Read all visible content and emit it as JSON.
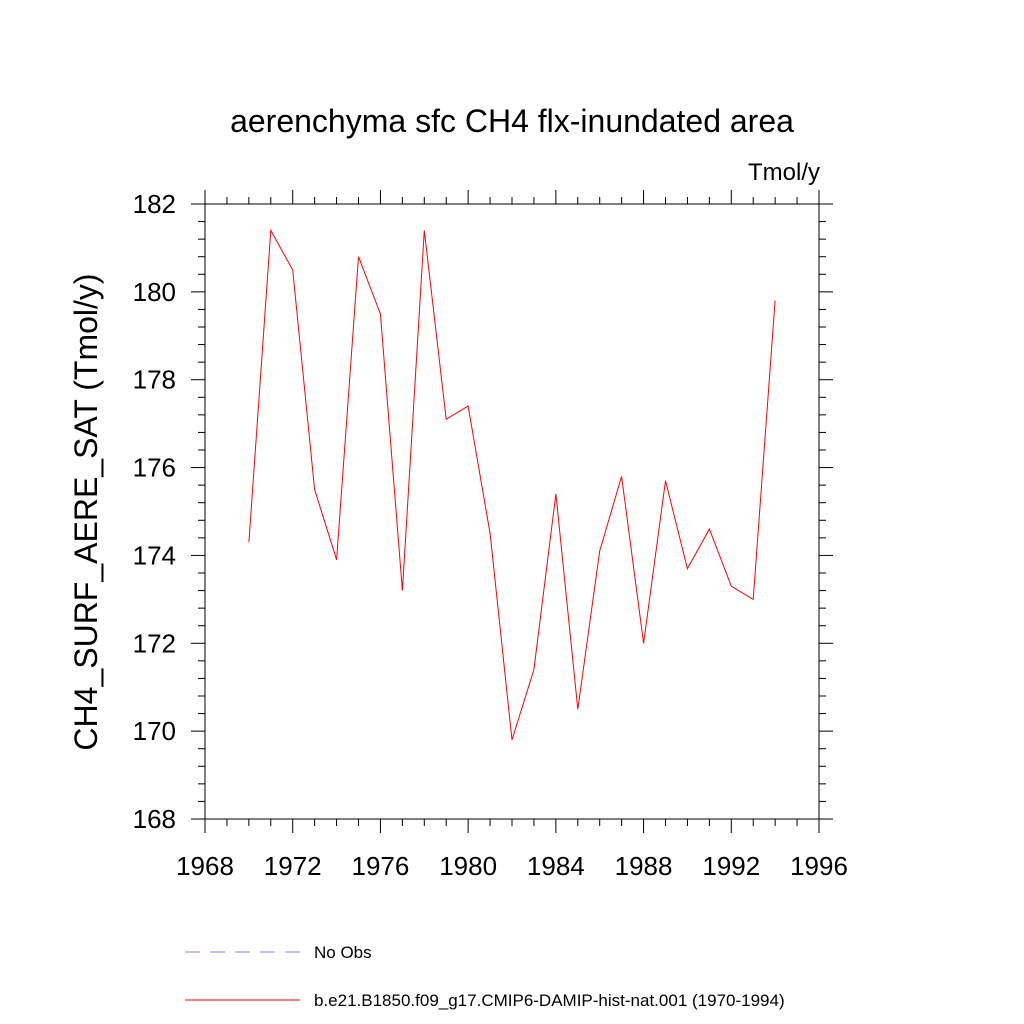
{
  "chart_data": {
    "type": "line",
    "title": "aerenchyma sfc CH4 flx-inundated area",
    "units_label": "Tmol/y",
    "ylabel": "CH4_SURF_AERE_SAT  (Tmol/y)",
    "xlabel": "",
    "xlim": [
      1968,
      1996
    ],
    "ylim": [
      168,
      182
    ],
    "x_ticks": [
      1968,
      1972,
      1976,
      1980,
      1984,
      1988,
      1992,
      1996
    ],
    "y_ticks": [
      168,
      170,
      172,
      174,
      176,
      178,
      180,
      182
    ],
    "x_tick_labels": [
      "1968",
      "1972",
      "1976",
      "1980",
      "1984",
      "1988",
      "1992",
      "1996"
    ],
    "y_tick_labels": [
      "168",
      "170",
      "172",
      "174",
      "176",
      "178",
      "180",
      "182"
    ],
    "grid": false,
    "legend_position": "bottom",
    "series": [
      {
        "name": "b.e21.B1850.f09_g17.CMIP6-DAMIP-hist-nat.001 (1970-1994)",
        "color": "#ff0000",
        "style": "solid",
        "x": [
          1970,
          1971,
          1972,
          1973,
          1974,
          1975,
          1976,
          1977,
          1978,
          1979,
          1980,
          1981,
          1982,
          1983,
          1984,
          1985,
          1986,
          1987,
          1988,
          1989,
          1990,
          1991,
          1992,
          1993,
          1994
        ],
        "values": [
          174.3,
          181.4,
          180.5,
          175.5,
          173.9,
          180.8,
          179.5,
          173.2,
          181.4,
          177.1,
          177.4,
          174.5,
          169.8,
          171.4,
          175.4,
          170.5,
          174.1,
          175.8,
          172.0,
          175.7,
          173.7,
          174.6,
          173.3,
          173.0,
          179.8
        ]
      }
    ],
    "legend": [
      {
        "label": "No Obs",
        "color": "#8080ff",
        "style": "dashed"
      },
      {
        "label": "b.e21.B1850.f09_g17.CMIP6-DAMIP-hist-nat.001 (1970-1994)",
        "color": "#ff0000",
        "style": "solid"
      }
    ]
  }
}
